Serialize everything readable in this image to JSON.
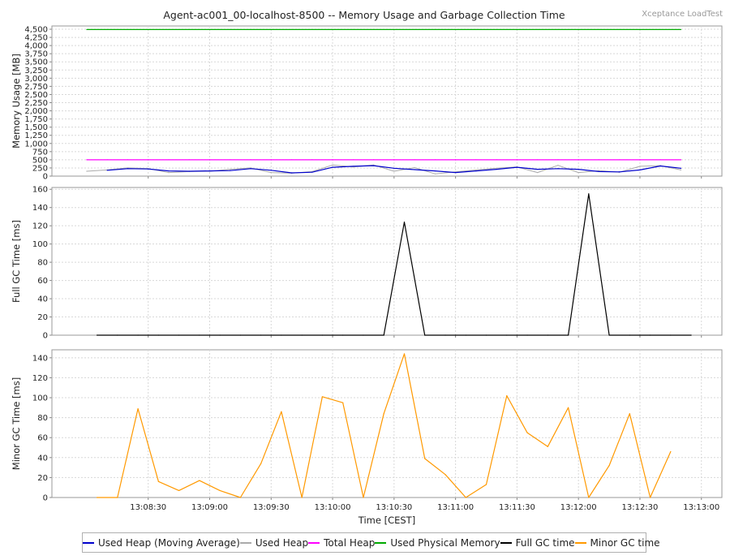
{
  "window": {
    "title": "Agent-ac001_00-localhost-8500 -- Memory Usage and Garbage Collection Time",
    "brand": "Xceptance LoadTest"
  },
  "chart_data": [
    {
      "type": "line",
      "ylabel": "Memory Usage [MB]",
      "ylim": [
        0,
        4600
      ],
      "yticks": [
        0,
        250,
        500,
        750,
        1000,
        1250,
        1500,
        1750,
        2000,
        2250,
        2500,
        2750,
        3000,
        3250,
        3500,
        3750,
        4000,
        4250,
        4500
      ],
      "ytick_labels": [
        "0",
        "250",
        "500",
        "750",
        "1,000",
        "1,250",
        "1,500",
        "1,750",
        "2,000",
        "2,250",
        "2,500",
        "2,750",
        "3,000",
        "3,250",
        "3,500",
        "3,750",
        "4,000",
        "4,250",
        "4,500"
      ],
      "grid": true,
      "x": [
        "13:08:00",
        "13:08:10",
        "13:08:20",
        "13:08:30",
        "13:08:40",
        "13:08:50",
        "13:09:00",
        "13:09:10",
        "13:09:20",
        "13:09:30",
        "13:09:40",
        "13:09:50",
        "13:10:00",
        "13:10:10",
        "13:10:20",
        "13:10:30",
        "13:10:40",
        "13:10:50",
        "13:11:00",
        "13:11:10",
        "13:11:20",
        "13:11:30",
        "13:11:40",
        "13:11:50",
        "13:12:00",
        "13:12:10",
        "13:12:20",
        "13:12:30",
        "13:12:40",
        "13:12:50"
      ],
      "series": [
        {
          "name": "Used Heap",
          "color": "#aaaaaa",
          "values": [
            150,
            190,
            250,
            230,
            110,
            140,
            150,
            210,
            250,
            110,
            90,
            140,
            340,
            280,
            340,
            150,
            260,
            70,
            130,
            190,
            240,
            280,
            110,
            330,
            110,
            170,
            120,
            300,
            320,
            190
          ]
        },
        {
          "name": "Used Heap (Moving Average)",
          "color": "#0000cc",
          "values": [
            null,
            180,
            230,
            220,
            160,
            150,
            160,
            170,
            230,
            180,
            100,
            120,
            270,
            300,
            320,
            240,
            200,
            160,
            110,
            160,
            210,
            270,
            210,
            230,
            210,
            140,
            130,
            190,
            310,
            240
          ]
        },
        {
          "name": "Total Heap",
          "color": "#ff00ff",
          "values": [
            500,
            500,
            500,
            500,
            500,
            500,
            500,
            500,
            500,
            500,
            500,
            500,
            500,
            500,
            500,
            500,
            500,
            500,
            500,
            500,
            500,
            500,
            500,
            500,
            500,
            500,
            500,
            500,
            500,
            500
          ]
        },
        {
          "name": "Used Physical Memory",
          "color": "#00aa00",
          "values": [
            4490,
            4490,
            4490,
            4490,
            4490,
            4490,
            4490,
            4490,
            4490,
            4490,
            4490,
            4490,
            4490,
            4490,
            4490,
            4490,
            4490,
            4490,
            4490,
            4490,
            4490,
            4490,
            4490,
            4490,
            4490,
            4490,
            4490,
            4490,
            4490,
            4490
          ]
        }
      ]
    },
    {
      "type": "line",
      "ylabel": "Full GC Time [ms]",
      "ylim": [
        0,
        162
      ],
      "yticks": [
        0,
        20,
        40,
        60,
        80,
        100,
        120,
        140,
        160
      ],
      "ytick_labels": [
        "0",
        "20",
        "40",
        "60",
        "80",
        "100",
        "120",
        "140",
        "160"
      ],
      "grid": true,
      "x": [
        "13:08:05",
        "13:08:15",
        "13:08:25",
        "13:08:35",
        "13:08:45",
        "13:08:55",
        "13:09:05",
        "13:09:15",
        "13:09:25",
        "13:09:35",
        "13:09:45",
        "13:09:55",
        "13:10:05",
        "13:10:15",
        "13:10:25",
        "13:10:35",
        "13:10:45",
        "13:10:55",
        "13:11:05",
        "13:11:15",
        "13:11:25",
        "13:11:35",
        "13:11:45",
        "13:11:55",
        "13:12:05",
        "13:12:15",
        "13:12:25",
        "13:12:35",
        "13:12:45",
        "13:12:55"
      ],
      "series": [
        {
          "name": "Full GC time",
          "color": "#000000",
          "values": [
            0,
            0,
            0,
            0,
            0,
            0,
            0,
            0,
            0,
            0,
            0,
            0,
            0,
            0,
            0,
            124,
            0,
            0,
            0,
            0,
            0,
            0,
            0,
            0,
            155,
            0,
            0,
            0,
            0,
            0
          ]
        }
      ]
    },
    {
      "type": "line",
      "ylabel": "Minor GC Time [ms]",
      "xlabel": "Time [CEST]",
      "ylim": [
        0,
        148
      ],
      "yticks": [
        0,
        20,
        40,
        60,
        80,
        100,
        120,
        140
      ],
      "ytick_labels": [
        "0",
        "20",
        "40",
        "60",
        "80",
        "100",
        "120",
        "140"
      ],
      "xticks": [
        "13:08:30",
        "13:09:00",
        "13:09:30",
        "13:10:00",
        "13:10:30",
        "13:11:00",
        "13:11:30",
        "13:12:00",
        "13:12:30",
        "13:13:00"
      ],
      "grid": true,
      "x": [
        "13:08:05",
        "13:08:15",
        "13:08:25",
        "13:08:35",
        "13:08:45",
        "13:08:55",
        "13:09:05",
        "13:09:15",
        "13:09:25",
        "13:09:35",
        "13:09:45",
        "13:09:55",
        "13:10:05",
        "13:10:15",
        "13:10:25",
        "13:10:35",
        "13:10:45",
        "13:10:55",
        "13:11:05",
        "13:11:15",
        "13:11:25",
        "13:11:35",
        "13:11:45",
        "13:11:55",
        "13:12:05",
        "13:12:15",
        "13:12:25",
        "13:12:35",
        "13:12:45",
        "13:12:55"
      ],
      "series": [
        {
          "name": "Minor GC time",
          "color": "#ff9900",
          "values": [
            0,
            0,
            89,
            16,
            7,
            17,
            7,
            0,
            34,
            86,
            0,
            101,
            95,
            0,
            84,
            144,
            39,
            23,
            0,
            13,
            102,
            65,
            51,
            90,
            0,
            32,
            84,
            0,
            46,
            null
          ]
        }
      ]
    }
  ],
  "legend": {
    "position": "bottom",
    "items": [
      {
        "label": "Used Heap (Moving Average)",
        "color": "#0000cc"
      },
      {
        "label": "Used Heap",
        "color": "#aaaaaa"
      },
      {
        "label": "Total Heap",
        "color": "#ff00ff"
      },
      {
        "label": "Used Physical Memory",
        "color": "#00aa00"
      },
      {
        "label": "Full GC time",
        "color": "#000000"
      },
      {
        "label": "Minor GC time",
        "color": "#ff9900"
      }
    ]
  }
}
